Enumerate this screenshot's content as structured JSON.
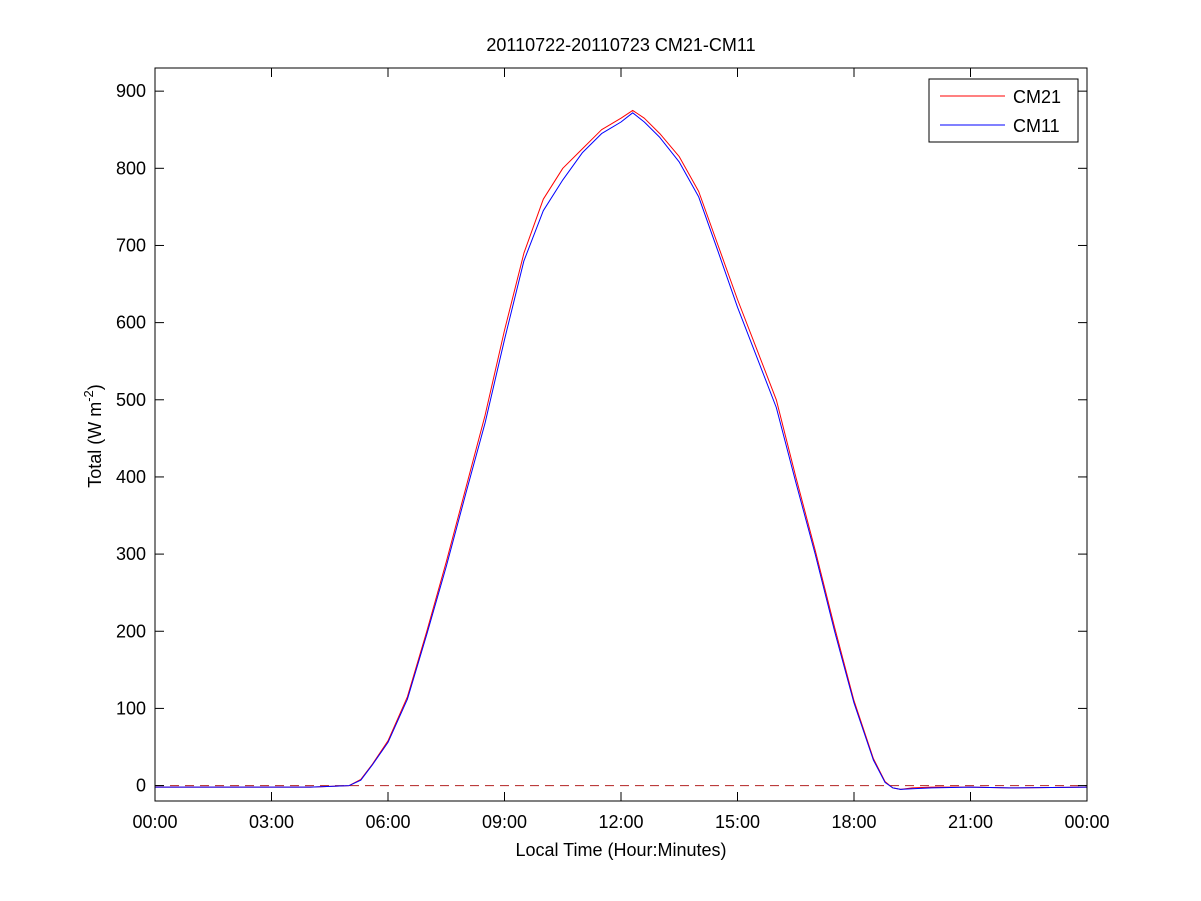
{
  "chart_data": {
    "type": "line",
    "title": "20110722-20110723 CM21-CM11",
    "xlabel": "Local Time (Hour:Minutes)",
    "ylabel_prefix": "Total (W m",
    "ylabel_sup": "-2",
    "ylabel_suffix": ")",
    "xlim": [
      0,
      24
    ],
    "ylim": [
      -20,
      930
    ],
    "xticks": [
      0,
      3,
      6,
      9,
      12,
      15,
      18,
      21,
      24
    ],
    "xtick_labels": [
      "00:00",
      "03:00",
      "06:00",
      "09:00",
      "12:00",
      "15:00",
      "18:00",
      "21:00",
      "00:00"
    ],
    "yticks": [
      0,
      100,
      200,
      300,
      400,
      500,
      600,
      700,
      800,
      900
    ],
    "ytick_labels": [
      "0",
      "100",
      "200",
      "300",
      "400",
      "500",
      "600",
      "700",
      "800",
      "900"
    ],
    "grid": false,
    "legend_position": "top-right",
    "reference_line": {
      "y": 0,
      "style": "dashed",
      "color": "#b22222"
    },
    "series": [
      {
        "name": "CM21",
        "color": "#ff0000",
        "x": [
          0,
          4,
          4.6,
          5.0,
          5.3,
          5.6,
          6.0,
          6.5,
          7.0,
          7.5,
          8.0,
          8.5,
          9.0,
          9.5,
          10.0,
          10.5,
          11.0,
          11.5,
          12.0,
          12.3,
          12.6,
          13.0,
          13.5,
          14.0,
          14.5,
          15.0,
          15.5,
          16.0,
          16.5,
          17.0,
          17.5,
          18.0,
          18.5,
          18.8,
          19.0,
          19.2,
          19.5,
          20.0,
          21.0,
          22.0,
          24.0
        ],
        "y": [
          -2,
          -2,
          -1,
          0,
          8,
          28,
          58,
          115,
          200,
          290,
          385,
          480,
          590,
          690,
          760,
          800,
          825,
          850,
          865,
          875,
          865,
          845,
          815,
          770,
          700,
          630,
          565,
          500,
          400,
          305,
          205,
          110,
          35,
          5,
          -3,
          -5,
          -3,
          -2,
          -2,
          -3,
          -2
        ]
      },
      {
        "name": "CM11",
        "color": "#0000ff",
        "x": [
          0,
          4,
          4.6,
          5.0,
          5.3,
          5.6,
          6.0,
          6.5,
          7.0,
          7.5,
          8.0,
          8.5,
          9.0,
          9.5,
          10.0,
          10.5,
          11.0,
          11.5,
          12.0,
          12.3,
          12.6,
          13.0,
          13.5,
          14.0,
          14.5,
          15.0,
          15.5,
          16.0,
          16.5,
          17.0,
          17.5,
          18.0,
          18.5,
          18.8,
          19.0,
          19.2,
          19.5,
          20.0,
          21.0,
          22.0,
          24.0
        ],
        "y": [
          -2,
          -2,
          -1,
          0,
          7,
          27,
          56,
          112,
          196,
          284,
          378,
          470,
          578,
          680,
          745,
          785,
          820,
          845,
          860,
          872,
          860,
          840,
          808,
          763,
          692,
          620,
          555,
          490,
          393,
          300,
          200,
          107,
          33,
          4,
          -3,
          -5,
          -4,
          -3,
          -2,
          -3,
          -2
        ]
      }
    ]
  }
}
